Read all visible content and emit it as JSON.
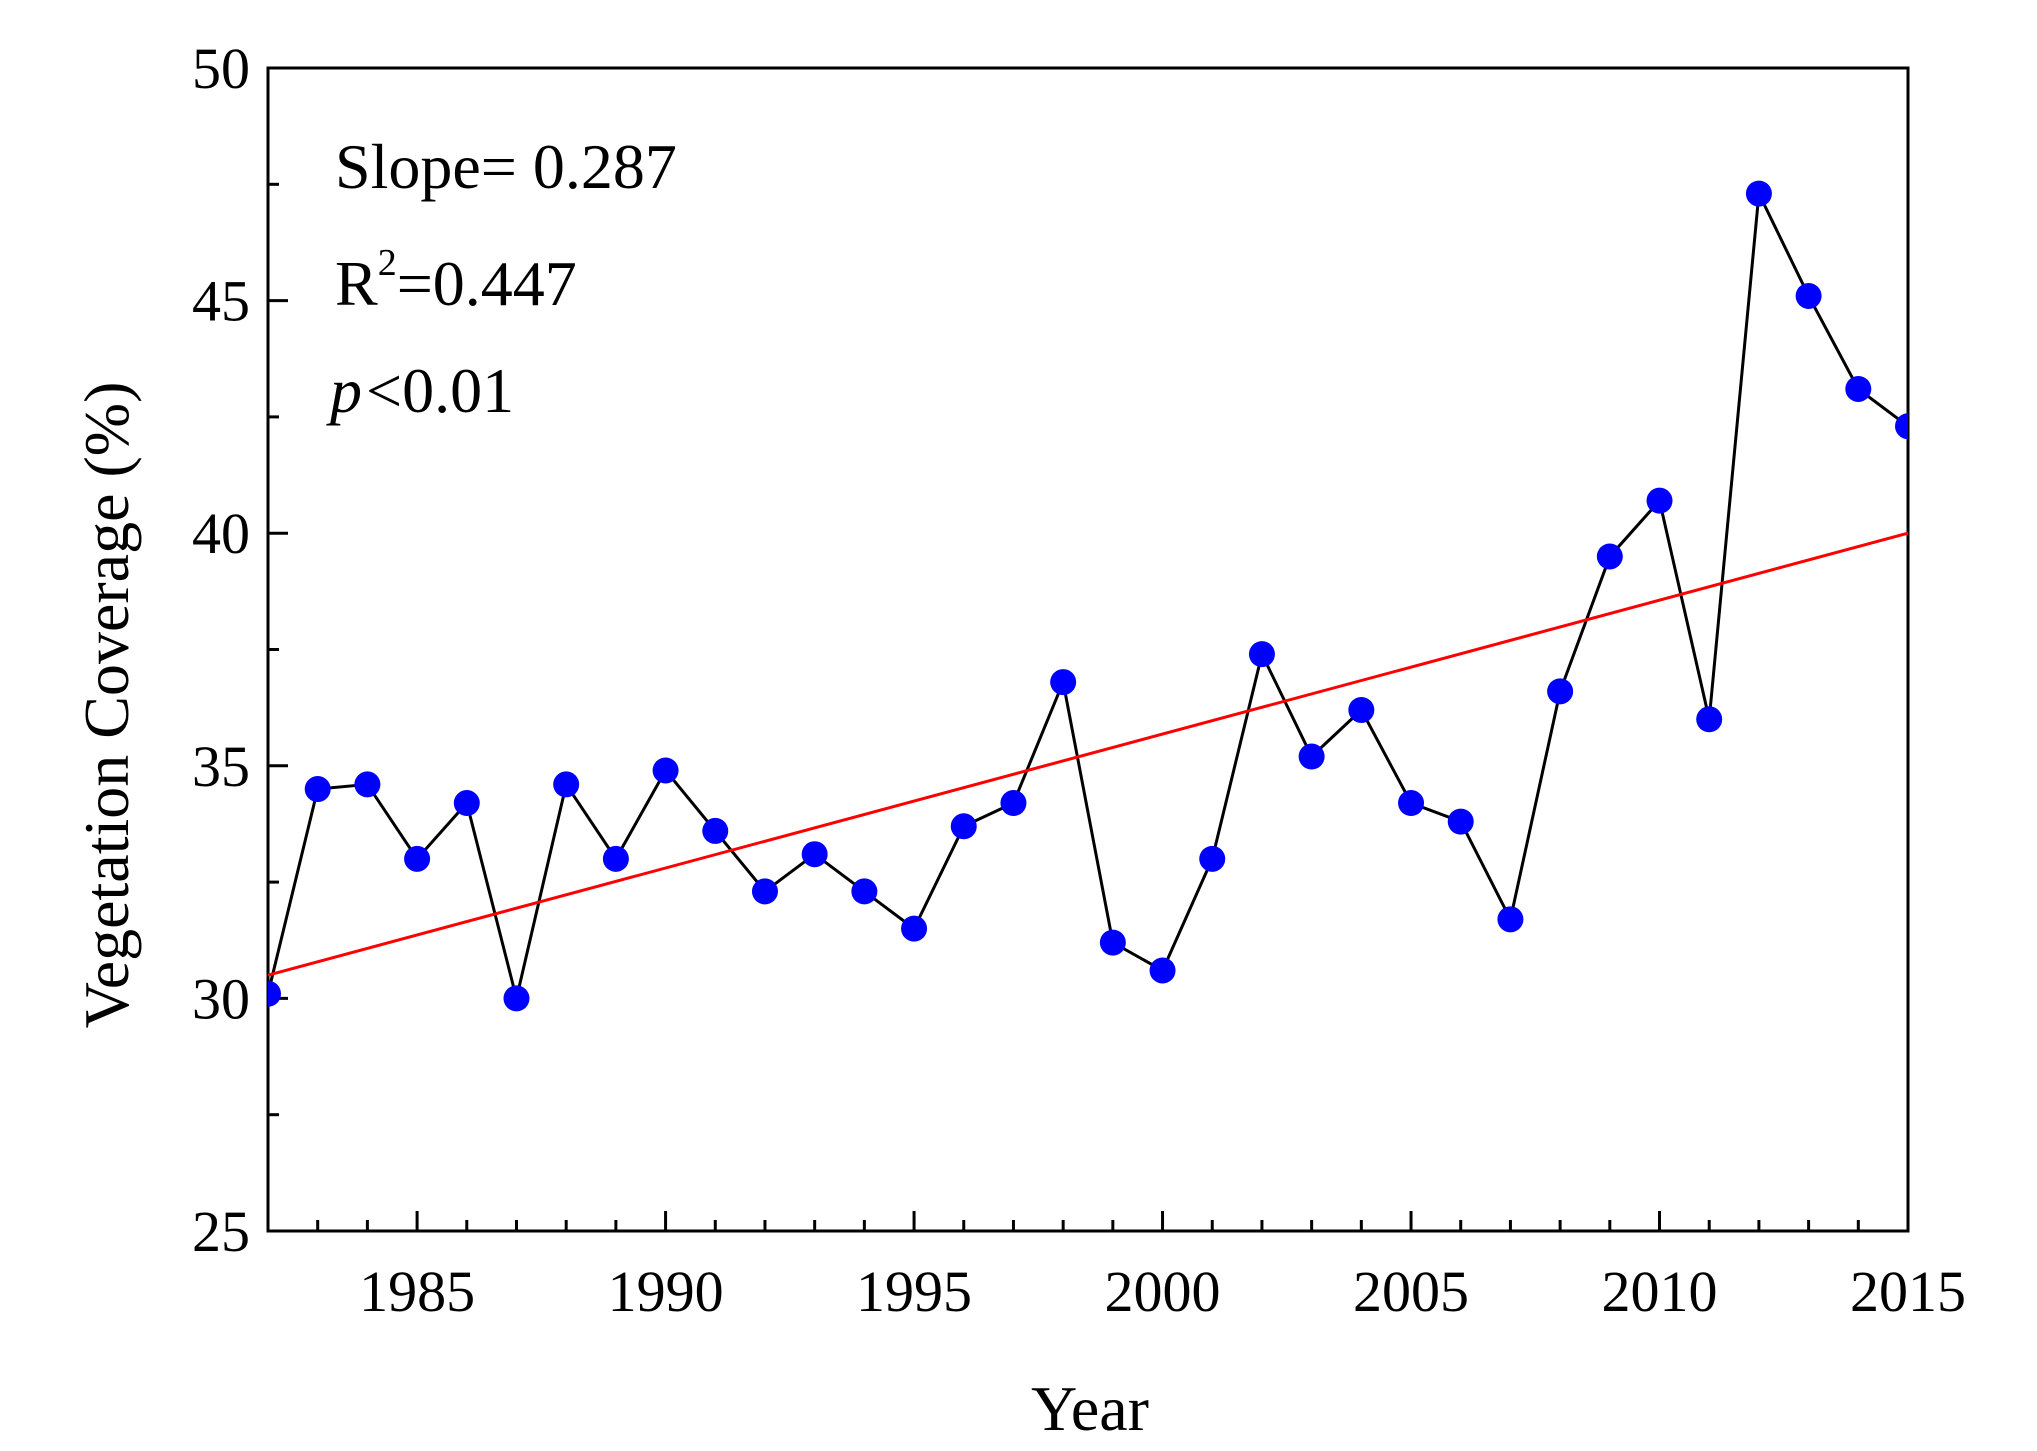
{
  "chart_data": {
    "type": "line",
    "title": "",
    "xlabel": "Year",
    "ylabel": "Vegetation Coverage (%)",
    "xlim": [
      1982,
      2015
    ],
    "ylim": [
      25,
      50
    ],
    "x_major_ticks": [
      1985,
      1990,
      1995,
      2000,
      2005,
      2010,
      2015
    ],
    "x_tick_labels": [
      "1985",
      "1990",
      "1995",
      "2000",
      "2005",
      "2010",
      "2015"
    ],
    "y_major_ticks": [
      25,
      30,
      35,
      40,
      45,
      50
    ],
    "y_tick_labels": [
      "25",
      "30",
      "35",
      "40",
      "45",
      "50"
    ],
    "grid": false,
    "series": [
      {
        "name": "Vegetation Coverage",
        "kind": "line+markers",
        "line_color": "#000000",
        "marker_color": "#0000ff",
        "x": [
          1982,
          1983,
          1984,
          1985,
          1986,
          1987,
          1988,
          1989,
          1990,
          1991,
          1992,
          1993,
          1994,
          1995,
          1996,
          1997,
          1998,
          1999,
          2000,
          2001,
          2002,
          2003,
          2004,
          2005,
          2006,
          2007,
          2008,
          2009,
          2010,
          2011,
          2012,
          2013,
          2014,
          2015
        ],
        "y": [
          30.1,
          34.5,
          34.6,
          33.0,
          34.2,
          30.0,
          34.6,
          33.0,
          34.9,
          33.6,
          32.3,
          33.1,
          32.3,
          31.5,
          33.7,
          34.2,
          36.8,
          31.2,
          30.6,
          33.0,
          37.4,
          35.2,
          36.2,
          34.2,
          33.8,
          31.7,
          36.6,
          39.5,
          40.7,
          36.0,
          47.3,
          45.1,
          43.1,
          42.3
        ]
      },
      {
        "name": "Linear fit",
        "kind": "line",
        "line_color": "#ff0000",
        "x": [
          1982,
          2015
        ],
        "y": [
          30.5,
          40.0
        ]
      }
    ],
    "annotations": {
      "slope": "Slope= 0.287",
      "r2_prefix": "R",
      "r2_sup": "2",
      "r2_value": "=0.447",
      "p_symbol": "p",
      "p_value": "<0.01"
    }
  }
}
